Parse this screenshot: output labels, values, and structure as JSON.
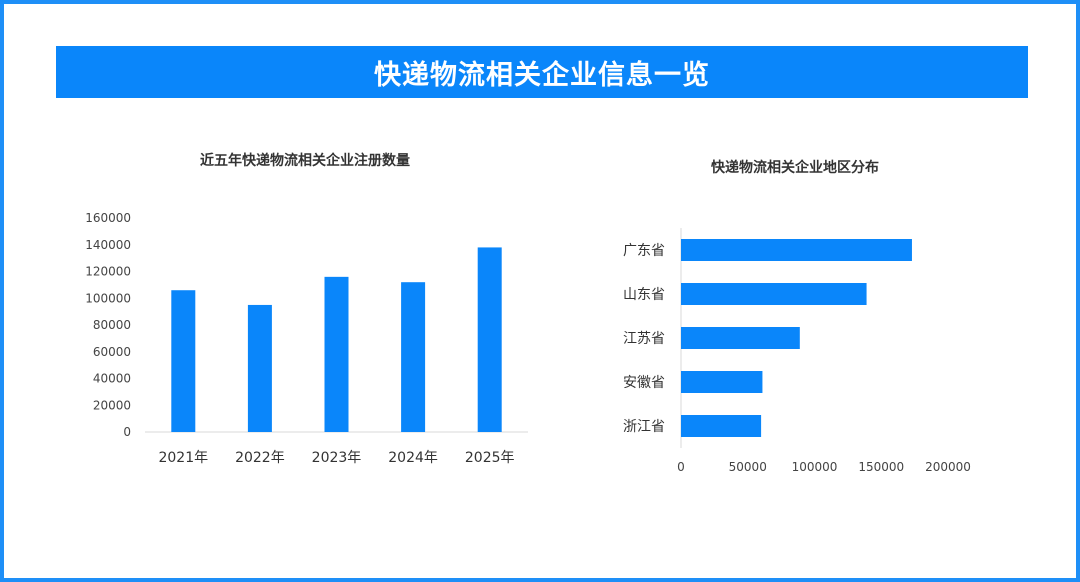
{
  "page": {
    "title": "快递物流相关企业信息一览"
  },
  "colors": {
    "accent": "#0a86fa",
    "border": "#1e8ff7",
    "axis": "#d9d9d9",
    "text": "#333333"
  },
  "chart_data": [
    {
      "type": "bar",
      "orientation": "vertical",
      "title": "近五年快递物流相关企业注册数量",
      "categories": [
        "2021年",
        "2022年",
        "2023年",
        "2024年",
        "2025年"
      ],
      "values": [
        106000,
        95000,
        116000,
        112000,
        138000
      ],
      "ylim": [
        0,
        160000
      ],
      "yticks": [
        "0",
        "20000",
        "40000",
        "60000",
        "80000",
        "100000",
        "120000",
        "140000",
        "160000"
      ],
      "grid": false,
      "color": "#0a86fa"
    },
    {
      "type": "bar",
      "orientation": "horizontal",
      "title": "快递物流相关企业地区分布",
      "categories": [
        "广东省",
        "山东省",
        "江苏省",
        "安徽省",
        "浙江省"
      ],
      "values": [
        173000,
        139000,
        89000,
        61000,
        60000
      ],
      "xlim": [
        0,
        200000
      ],
      "xticks": [
        "0",
        "50000",
        "100000",
        "150000",
        "200000"
      ],
      "grid": false,
      "color": "#0a86fa"
    }
  ]
}
